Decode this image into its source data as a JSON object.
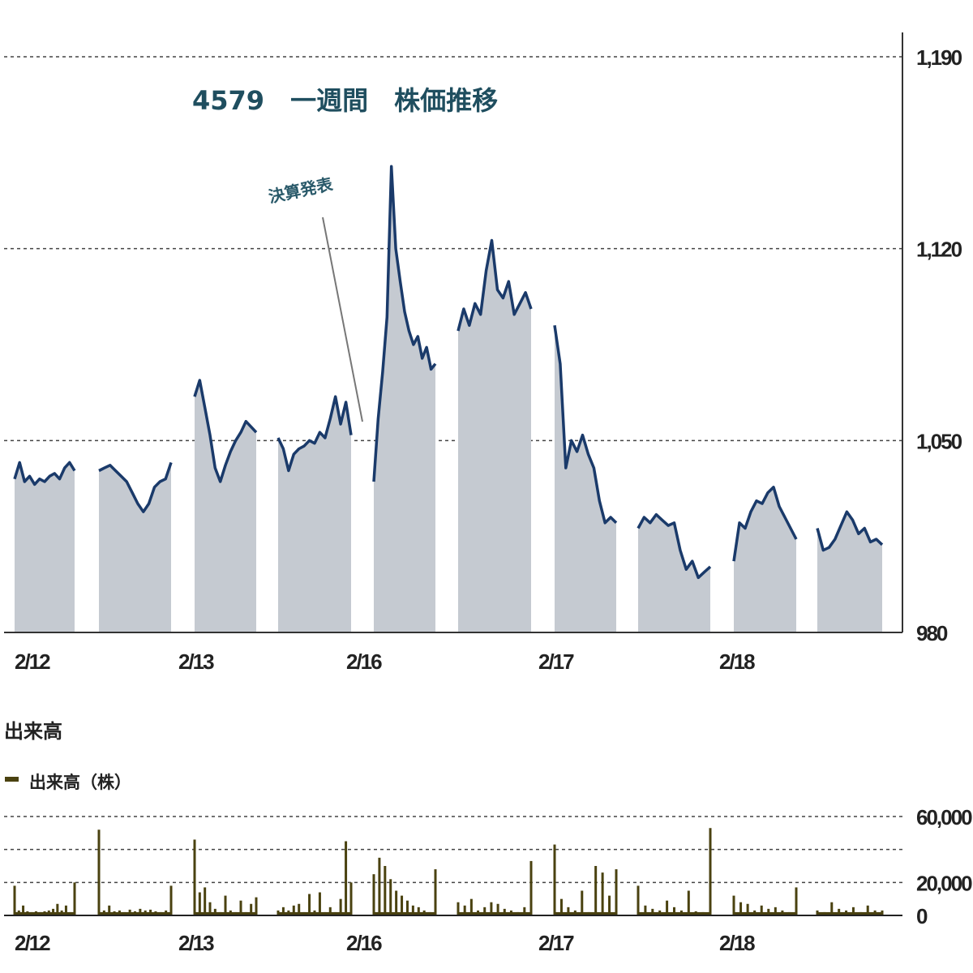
{
  "chart_data": [
    {
      "type": "area",
      "title": "4579　一週間　株価推移",
      "annotation": "決算発表",
      "y_ticks": [
        "1,190",
        "1,120",
        "1,050",
        "980"
      ],
      "y_tick_values": [
        1190,
        1120,
        1050,
        980
      ],
      "ylim": [
        980,
        1190
      ],
      "x_ticks": [
        "2/12",
        "2/13",
        "2/16",
        "2/17",
        "2/18"
      ],
      "grid": "horizontal dashed",
      "colors": {
        "line": "#1a3a6a",
        "fill": "#c5cad1"
      },
      "sessions": [
        {
          "date": "2/12",
          "session": "AM",
          "values": [
            1036,
            1042,
            1035,
            1037,
            1034,
            1036,
            1035,
            1037,
            1038,
            1036,
            1040,
            1042,
            1039
          ]
        },
        {
          "date": "2/12",
          "session": "PM",
          "values": [
            1039,
            1040,
            1041,
            1039,
            1037,
            1035,
            1031,
            1027,
            1024,
            1027,
            1033,
            1035,
            1036,
            1042
          ]
        },
        {
          "date": "2/13",
          "session": "AM",
          "values": [
            1066,
            1072,
            1062,
            1052,
            1040,
            1035,
            1041,
            1046,
            1050,
            1053,
            1057,
            1055,
            1053
          ]
        },
        {
          "date": "2/13",
          "session": "PM",
          "values": [
            1051,
            1047,
            1039,
            1045,
            1047,
            1048,
            1050,
            1049,
            1053,
            1051,
            1058,
            1066,
            1056,
            1064,
            1052
          ]
        },
        {
          "date": "2/16",
          "session": "AM",
          "values": [
            1035,
            1058,
            1075,
            1095,
            1150,
            1120,
            1108,
            1097,
            1090,
            1085,
            1088,
            1080,
            1084,
            1076,
            1078
          ]
        },
        {
          "date": "2/16",
          "session": "PM",
          "values": [
            1090,
            1098,
            1092,
            1100,
            1096,
            1112,
            1123,
            1105,
            1102,
            1108,
            1096,
            1100,
            1104,
            1098
          ]
        },
        {
          "date": "2/17",
          "session": "AM",
          "values": [
            1092,
            1078,
            1040,
            1050,
            1046,
            1052,
            1045,
            1040,
            1028,
            1020,
            1022,
            1020
          ]
        },
        {
          "date": "2/17",
          "session": "PM",
          "values": [
            1018,
            1022,
            1020,
            1023,
            1021,
            1019,
            1020,
            1010,
            1003,
            1006,
            1000,
            1002,
            1004
          ]
        },
        {
          "date": "2/18",
          "session": "AM",
          "values": [
            1006,
            1020,
            1018,
            1024,
            1028,
            1027,
            1031,
            1033,
            1026,
            1022,
            1018,
            1014
          ]
        },
        {
          "date": "2/18",
          "session": "PM",
          "values": [
            1018,
            1010,
            1011,
            1014,
            1019,
            1024,
            1021,
            1016,
            1018,
            1013,
            1014,
            1012
          ]
        }
      ]
    },
    {
      "type": "bar",
      "title": "出来高",
      "legend": "出来高（株）",
      "legend_placement": "top-left",
      "y_ticks": [
        "60,000",
        "20,000",
        "0"
      ],
      "ylim": [
        0,
        60000
      ],
      "x_ticks": [
        "2/12",
        "2/13",
        "2/16",
        "2/17",
        "2/18"
      ],
      "color": "#4a4210",
      "sessions": [
        [
          18000,
          3000,
          6000,
          2500,
          2000,
          2500,
          2000,
          2500,
          3000,
          4000,
          7000,
          3000,
          6000,
          2000,
          20000
        ],
        [
          52000,
          3000,
          6000,
          2500,
          3000,
          2000,
          3500,
          2500,
          4000,
          3000,
          3500,
          2500,
          2000,
          3000,
          18000
        ],
        [
          46000,
          14000,
          17000,
          8000,
          4000,
          2000,
          12000,
          3000,
          2000,
          9000,
          2000,
          7000,
          11000
        ],
        [
          3000,
          5000,
          3000,
          6000,
          7000,
          2000,
          13000,
          3000,
          14000,
          2000,
          5000,
          2000,
          10000,
          45000,
          20000
        ],
        [
          25000,
          35000,
          30000,
          22000,
          15000,
          12000,
          9000,
          6000,
          5000,
          3000,
          2000,
          28000
        ],
        [
          8000,
          6000,
          10000,
          3000,
          5000,
          8000,
          7000,
          4000,
          3000,
          2000,
          5000,
          33000
        ],
        [
          43000,
          10000,
          5000,
          3000,
          15000,
          2000,
          30000,
          26000,
          12000,
          28000
        ],
        [
          18000,
          6000,
          4000,
          3000,
          9000,
          5000,
          3000,
          15000,
          2500,
          2000,
          53000
        ],
        [
          12000,
          8000,
          7000,
          3000,
          6000,
          4000,
          5000,
          3000,
          2000,
          17000
        ],
        [
          3000,
          2000,
          8000,
          4000,
          3000,
          5000,
          2000,
          6000,
          3000,
          3000
        ]
      ]
    }
  ]
}
